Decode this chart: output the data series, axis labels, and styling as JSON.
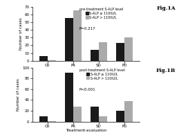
{
  "fig_title_A": "Fig.1A",
  "fig_title_B": "Fig.1B",
  "categories": [
    "CR",
    "PR",
    "SD",
    "PD"
  ],
  "legend_title_A": "pre-treatment S-ALP level",
  "legend_title_B": "post-treatment S-ALP level",
  "legend_labels": [
    "S-ALP ≤ 110IU/L",
    "S-ALP > 110IU/L"
  ],
  "bar_colors": [
    "#1a1a1a",
    "#aaaaaa"
  ],
  "xlabel": "Treatment-evaluation",
  "ylabel": "Number of cases",
  "pvalue_A": "P=0.217",
  "pvalue_B": "P<0.001",
  "values_A_low": [
    6,
    55,
    14,
    23
  ],
  "values_A_high": [
    1,
    65,
    24,
    30
  ],
  "values_B_low": [
    9,
    90,
    28,
    20
  ],
  "values_B_high": [
    1,
    28,
    10,
    38
  ],
  "ylim_A": [
    0,
    70
  ],
  "ylim_B": [
    0,
    100
  ],
  "yticks_A": [
    0,
    10,
    20,
    30,
    40,
    50,
    60,
    70
  ],
  "yticks_B": [
    0,
    20,
    40,
    60,
    80,
    100
  ]
}
